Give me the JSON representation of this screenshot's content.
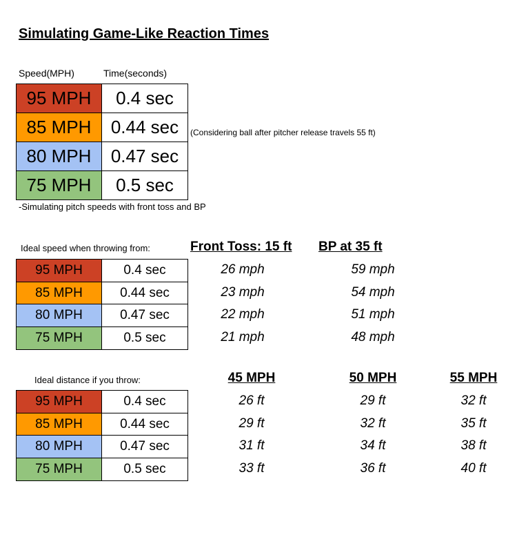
{
  "title": "Simulating Game-Like Reaction Times",
  "table1": {
    "headers": [
      "Speed(MPH)",
      "Time(seconds)"
    ],
    "rows": [
      [
        "95 MPH",
        "0.4 sec"
      ],
      [
        "85 MPH",
        "0.44 sec"
      ],
      [
        "80 MPH",
        "0.47 sec"
      ],
      [
        "75 MPH",
        "0.5 sec"
      ]
    ],
    "note": "(Considering ball after pitcher release travels 55 ft)",
    "footnote": "-Simulating pitch speeds with front toss and BP"
  },
  "table2": {
    "label": "Ideal speed when throwing from:",
    "headers": [
      "Front Toss: 15 ft",
      "BP at 35 ft"
    ],
    "rows": [
      [
        "95 MPH",
        "0.4 sec",
        "26 mph",
        "59 mph"
      ],
      [
        "85 MPH",
        "0.44 sec",
        "23 mph",
        "54 mph"
      ],
      [
        "80 MPH",
        "0.47 sec",
        "22 mph",
        "51 mph"
      ],
      [
        "75 MPH",
        "0.5 sec",
        "21 mph",
        "48 mph"
      ]
    ]
  },
  "table3": {
    "label": "Ideal distance if you throw:",
    "headers": [
      "45 MPH",
      "50 MPH",
      "55 MPH"
    ],
    "rows": [
      [
        "95 MPH",
        "0.4 sec",
        "26 ft",
        "29 ft",
        "32 ft"
      ],
      [
        "85 MPH",
        "0.44 sec",
        "29 ft",
        "32 ft",
        "35 ft"
      ],
      [
        "80 MPH",
        "0.47 sec",
        "31 ft",
        "34 ft",
        "38 ft"
      ],
      [
        "75 MPH",
        "0.5 sec",
        "33 ft",
        "36 ft",
        "40 ft"
      ]
    ]
  }
}
